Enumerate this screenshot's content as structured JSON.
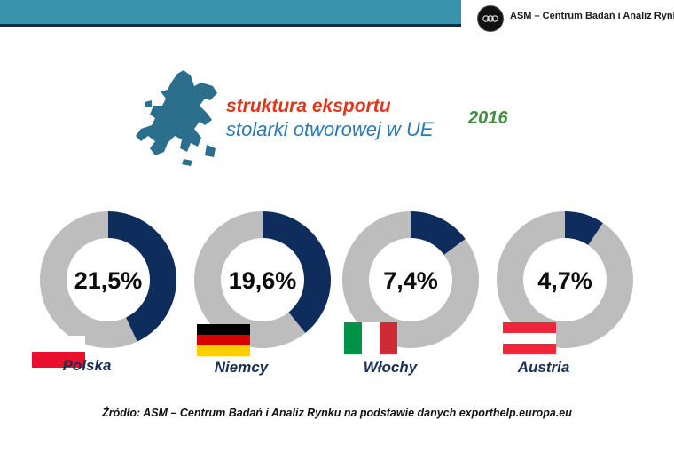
{
  "header": {
    "logo_text": "ASM – Centrum Badań i Analiz Rynku"
  },
  "title": {
    "line1": "struktura eksportu",
    "line2": "stolarki otworowej w UE",
    "year": "2016"
  },
  "chart_data": {
    "type": "pie",
    "series": [
      {
        "name": "Polska",
        "value": 21.5,
        "label": "21,5%"
      },
      {
        "name": "Niemcy",
        "value": 19.6,
        "label": "19,6%"
      },
      {
        "name": "Włochy",
        "value": 7.4,
        "label": "7,4%"
      },
      {
        "name": "Austria",
        "value": 4.7,
        "label": "4,7%"
      }
    ]
  },
  "colors": {
    "donut_value": "#0f2d5c",
    "donut_rest": "#bdbdbd",
    "title_red": "#e0371c",
    "title_blue": "#2a7ab3",
    "year_green": "#3f8f3f"
  },
  "source": "Źródło: ASM – Centrum Badań i Analiz Rynku na podstawie danych exporthelp.europa.eu"
}
